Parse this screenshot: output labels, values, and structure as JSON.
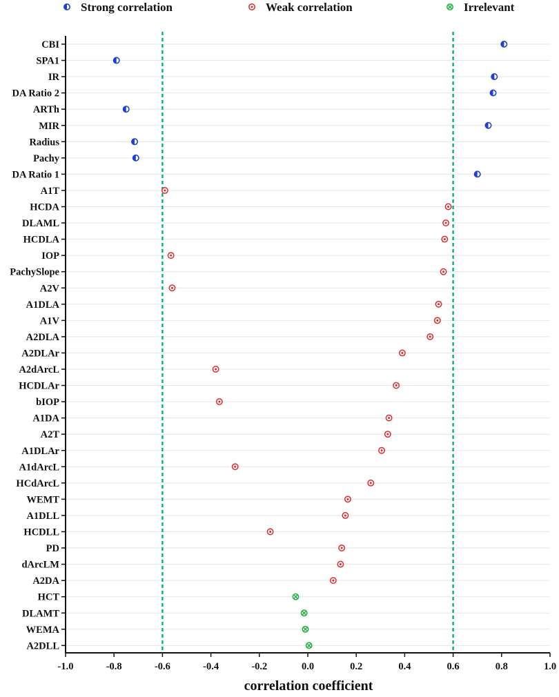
{
  "chart_data": {
    "type": "scatter",
    "title": "",
    "xlabel": "correlation coefficient",
    "ylabel": "",
    "xlim": [
      -1.0,
      1.0
    ],
    "x_ticks": [
      "-1.0",
      "-0.8",
      "-0.6",
      "-0.4",
      "-0.2",
      "0.0",
      "0.2",
      "0.4",
      "0.6",
      "0.8",
      "1.0"
    ],
    "x_tick_values": [
      -1.0,
      -0.8,
      -0.6,
      -0.4,
      -0.2,
      0.0,
      0.2,
      0.4,
      0.6,
      0.8,
      1.0
    ],
    "threshold_lines": [
      -0.6,
      0.6
    ],
    "threshold_color": "#00b37e",
    "grid": "horizontal",
    "legend_position": "top",
    "legend": [
      {
        "name": "Strong correlation",
        "color": "#1f3fd6",
        "marker": "half-filled-circle"
      },
      {
        "name": "Weak correlation",
        "color": "#e0282c",
        "marker": "circle-dot"
      },
      {
        "name": "Irrelevant",
        "color": "#1db33a",
        "marker": "circle-x"
      }
    ],
    "categories": [
      "CBI",
      "SPA1",
      "IR",
      "DA Ratio 2",
      "ARTh",
      "MIR",
      "Radius",
      "Pachy",
      "DA Ratio 1",
      "A1T",
      "HCDA",
      "DLAML",
      "HCDLA",
      "IOP",
      "PachySlope",
      "A2V",
      "A1DLA",
      "A1V",
      "A2DLA",
      "A2DLAr",
      "A2dArcL",
      "HCDLAr",
      "bIOP",
      "A1DA",
      "A2T",
      "A1DLAr",
      "A1dArcL",
      "HCdArcL",
      "WEMT",
      "A1DLL",
      "HCDLL",
      "PD",
      "dArcLM",
      "A2DA",
      "HCT",
      "DLAMT",
      "WEMA",
      "A2DLL"
    ],
    "series": [
      {
        "name": "Strong correlation",
        "points": [
          {
            "label": "CBI",
            "x": 0.81
          },
          {
            "label": "SPA1",
            "x": -0.79
          },
          {
            "label": "IR",
            "x": 0.77
          },
          {
            "label": "DA Ratio 2",
            "x": 0.765
          },
          {
            "label": "ARTh",
            "x": -0.75
          },
          {
            "label": "MIR",
            "x": 0.745
          },
          {
            "label": "Radius",
            "x": -0.715
          },
          {
            "label": "Pachy",
            "x": -0.71
          },
          {
            "label": "DA Ratio 1",
            "x": 0.7
          }
        ]
      },
      {
        "name": "Weak correlation",
        "points": [
          {
            "label": "A1T",
            "x": -0.59
          },
          {
            "label": "HCDA",
            "x": 0.58
          },
          {
            "label": "DLAML",
            "x": 0.57
          },
          {
            "label": "HCDLA",
            "x": 0.565
          },
          {
            "label": "IOP",
            "x": -0.565
          },
          {
            "label": "PachySlope",
            "x": 0.56
          },
          {
            "label": "A2V",
            "x": -0.56
          },
          {
            "label": "A1DLA",
            "x": 0.54
          },
          {
            "label": "A1V",
            "x": 0.535
          },
          {
            "label": "A2DLA",
            "x": 0.505
          },
          {
            "label": "A2DLAr",
            "x": 0.39
          },
          {
            "label": "A2dArcL",
            "x": -0.38
          },
          {
            "label": "HCDLAr",
            "x": 0.365
          },
          {
            "label": "bIOP",
            "x": -0.365
          },
          {
            "label": "A1DA",
            "x": 0.335
          },
          {
            "label": "A2T",
            "x": 0.33
          },
          {
            "label": "A1DLAr",
            "x": 0.305
          },
          {
            "label": "A1dArcL",
            "x": -0.3
          },
          {
            "label": "HCdArcL",
            "x": 0.26
          },
          {
            "label": "WEMT",
            "x": 0.165
          },
          {
            "label": "A1DLL",
            "x": 0.155
          },
          {
            "label": "HCDLL",
            "x": -0.155
          },
          {
            "label": "PD",
            "x": 0.14
          },
          {
            "label": "dArcLM",
            "x": 0.135
          },
          {
            "label": "A2DA",
            "x": 0.105
          }
        ]
      },
      {
        "name": "Irrelevant",
        "points": [
          {
            "label": "HCT",
            "x": -0.05
          },
          {
            "label": "DLAMT",
            "x": -0.015
          },
          {
            "label": "WEMA",
            "x": -0.01
          },
          {
            "label": "A2DLL",
            "x": 0.005
          }
        ]
      }
    ]
  }
}
